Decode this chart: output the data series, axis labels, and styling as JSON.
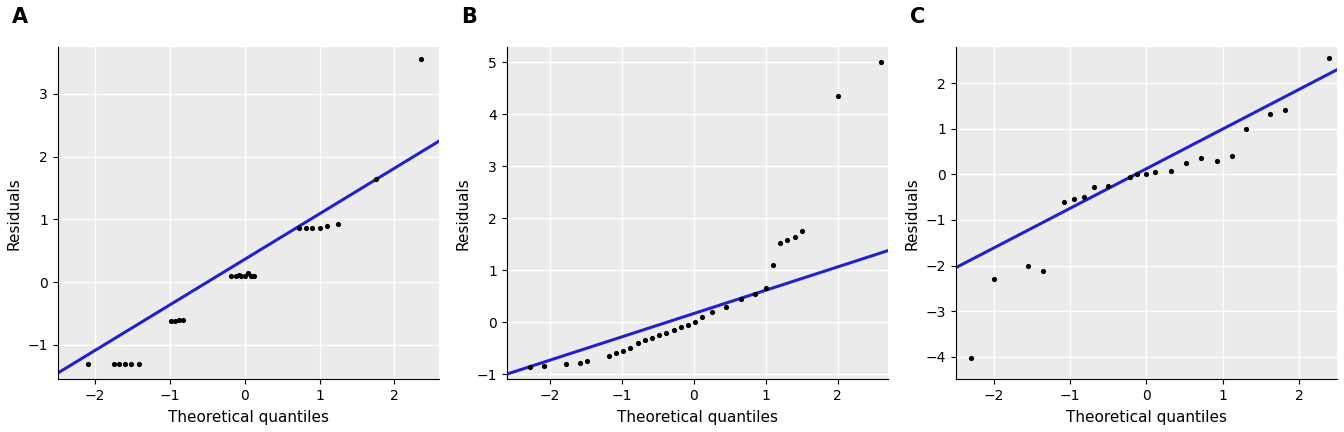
{
  "panel_labels": [
    "A",
    "B",
    "C"
  ],
  "xlabel": "Theoretical quantiles",
  "ylabel": "Residuals",
  "line_color": "#2222CC",
  "point_color": "black",
  "point_size": 14,
  "bg_color": "#EBEBEB",
  "grid_color": "white",
  "A": {
    "xlim": [
      -2.5,
      2.6
    ],
    "ylim": [
      -1.55,
      3.75
    ],
    "yticks": [
      -1,
      0,
      1,
      2,
      3
    ],
    "xticks": [
      -2,
      -1,
      0,
      1,
      2
    ],
    "line_x": [
      -2.5,
      2.6
    ],
    "line_y": [
      -1.45,
      2.25
    ],
    "points_x": [
      2.35,
      1.75,
      1.25,
      1.1,
      1.0,
      0.9,
      0.82,
      0.72,
      0.05,
      0.0,
      -0.05,
      -0.08,
      -0.12,
      -0.18,
      0.08,
      0.12,
      -0.82,
      -0.88,
      -0.93,
      -0.98,
      -1.42,
      -1.52,
      -1.6,
      -1.68,
      -1.75,
      -2.1
    ],
    "points_y": [
      3.55,
      1.65,
      0.92,
      0.9,
      0.87,
      0.87,
      0.87,
      0.87,
      0.15,
      0.1,
      0.1,
      0.12,
      0.1,
      0.1,
      0.1,
      0.1,
      -0.6,
      -0.6,
      -0.62,
      -0.62,
      -1.3,
      -1.3,
      -1.3,
      -1.3,
      -1.3,
      -1.3
    ]
  },
  "B": {
    "xlim": [
      -2.6,
      2.7
    ],
    "ylim": [
      -1.1,
      5.3
    ],
    "yticks": [
      -1,
      0,
      1,
      2,
      3,
      4,
      5
    ],
    "xticks": [
      -2,
      -1,
      0,
      1,
      2
    ],
    "line_x": [
      -2.6,
      2.7
    ],
    "line_y": [
      -1.0,
      1.38
    ],
    "points_x": [
      2.6,
      2.0,
      1.5,
      1.4,
      1.3,
      1.2,
      1.1,
      1.0,
      0.85,
      0.65,
      0.45,
      0.25,
      0.12,
      0.02,
      -0.08,
      -0.18,
      -0.28,
      -0.38,
      -0.48,
      -0.58,
      -0.68,
      -0.78,
      -0.88,
      -0.98,
      -1.08,
      -1.18,
      -1.48,
      -1.58,
      -1.78,
      -2.08,
      -2.28
    ],
    "points_y": [
      5.0,
      4.35,
      1.75,
      1.65,
      1.58,
      1.52,
      1.1,
      0.65,
      0.55,
      0.45,
      0.3,
      0.2,
      0.1,
      0.0,
      -0.05,
      -0.1,
      -0.15,
      -0.2,
      -0.25,
      -0.3,
      -0.35,
      -0.4,
      -0.5,
      -0.55,
      -0.6,
      -0.65,
      -0.75,
      -0.78,
      -0.8,
      -0.85,
      -0.87
    ]
  },
  "C": {
    "xlim": [
      -2.5,
      2.5
    ],
    "ylim": [
      -4.5,
      2.8
    ],
    "yticks": [
      -4,
      -3,
      -2,
      -1,
      0,
      1,
      2
    ],
    "xticks": [
      -2,
      -1,
      0,
      1,
      2
    ],
    "line_x": [
      -2.5,
      2.5
    ],
    "line_y": [
      -2.05,
      2.3
    ],
    "points_x": [
      2.4,
      1.82,
      1.62,
      1.3,
      1.12,
      0.92,
      0.72,
      0.52,
      0.32,
      0.12,
      0.0,
      -0.12,
      -0.22,
      -0.5,
      -0.68,
      -0.82,
      -0.95,
      -1.08,
      -1.35,
      -1.55,
      -2.0,
      -2.3
    ],
    "points_y": [
      2.55,
      1.42,
      1.32,
      1.0,
      0.4,
      0.3,
      0.35,
      0.25,
      0.07,
      0.05,
      0.02,
      0.0,
      -0.05,
      -0.25,
      -0.28,
      -0.5,
      -0.55,
      -0.6,
      -2.12,
      -2.02,
      -2.3,
      -4.02
    ]
  }
}
